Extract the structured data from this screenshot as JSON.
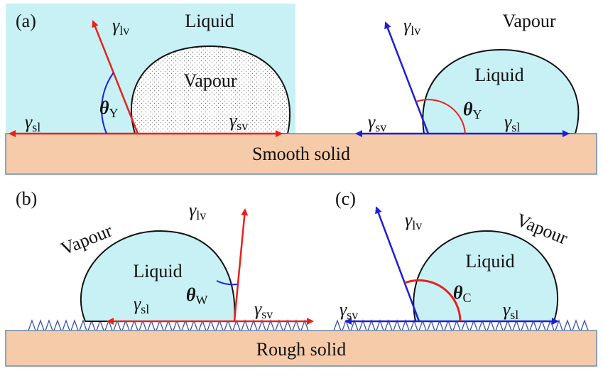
{
  "panel_a": {
    "label": "(a)",
    "left": {
      "medium": "Liquid",
      "drop": "Vapour",
      "gamma_lv": {
        "symbol": "γ",
        "sub": "lv"
      },
      "theta": {
        "symbol": "θ",
        "sub": "Y"
      },
      "gamma_sl": {
        "symbol": "γ",
        "sub": "sl"
      },
      "gamma_sv": {
        "symbol": "γ",
        "sub": "sv"
      }
    },
    "right": {
      "medium": "Vapour",
      "drop": "Liquid",
      "gamma_lv": {
        "symbol": "γ",
        "sub": "lv"
      },
      "theta": {
        "symbol": "θ",
        "sub": "Y"
      },
      "gamma_sv": {
        "symbol": "γ",
        "sub": "sv"
      },
      "gamma_sl": {
        "symbol": "γ",
        "sub": "sl"
      }
    },
    "solid": "Smooth solid"
  },
  "panel_b": {
    "label": "(b)",
    "medium": "Vapour",
    "drop": "Liquid",
    "gamma_lv": {
      "symbol": "γ",
      "sub": "lv"
    },
    "theta": {
      "symbol": "θ",
      "sub": "W"
    },
    "gamma_sl": {
      "symbol": "γ",
      "sub": "sl"
    },
    "gamma_sv": {
      "symbol": "γ",
      "sub": "sv"
    }
  },
  "panel_c": {
    "label": "(c)",
    "medium": "Vapour",
    "drop": "Liquid",
    "gamma_lv": {
      "symbol": "γ",
      "sub": "lv"
    },
    "theta": {
      "symbol": "θ",
      "sub": "C"
    },
    "gamma_sv": {
      "symbol": "γ",
      "sub": "sv"
    },
    "gamma_sl": {
      "symbol": "γ",
      "sub": "sl"
    }
  },
  "rough_solid": "Rough solid"
}
